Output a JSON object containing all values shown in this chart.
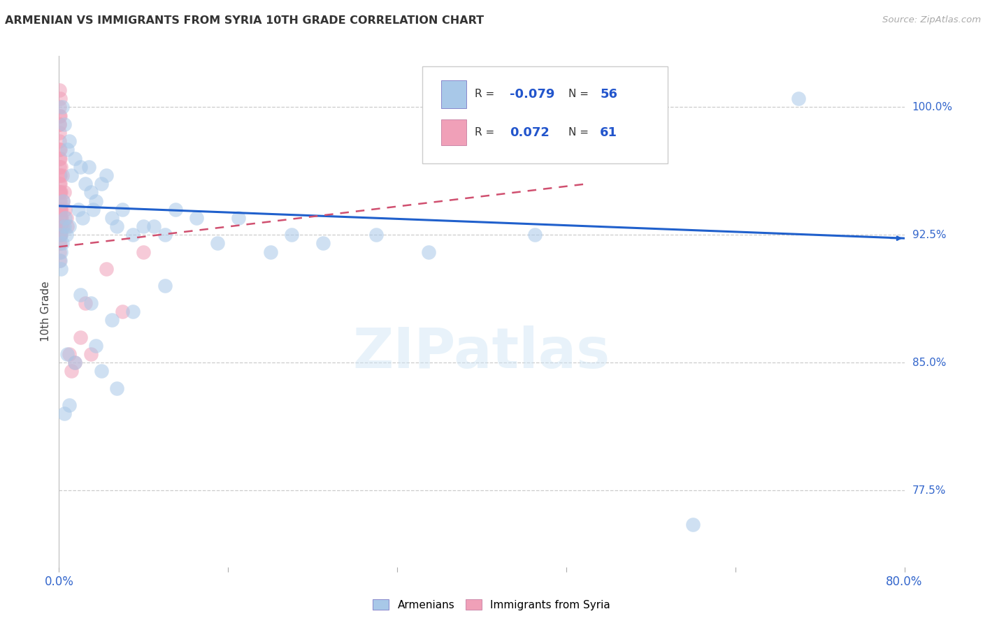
{
  "title": "ARMENIAN VS IMMIGRANTS FROM SYRIA 10TH GRADE CORRELATION CHART",
  "source": "Source: ZipAtlas.com",
  "ylabel": "10th Grade",
  "right_yticks": [
    100.0,
    92.5,
    85.0,
    77.5
  ],
  "right_ytick_labels": [
    "100.0%",
    "92.5%",
    "85.0%",
    "77.5%"
  ],
  "xlim": [
    0.0,
    80.0
  ],
  "ylim": [
    73.0,
    103.0
  ],
  "blue_color": "#a8c8e8",
  "pink_color": "#f0a0b8",
  "trend_blue": "#2060cc",
  "trend_pink": "#d05070",
  "watermark": "ZIPatlas",
  "blue_scatter": [
    [
      0.3,
      100.0
    ],
    [
      0.5,
      99.0
    ],
    [
      1.0,
      98.0
    ],
    [
      0.8,
      97.5
    ],
    [
      1.5,
      97.0
    ],
    [
      2.0,
      96.5
    ],
    [
      1.2,
      96.0
    ],
    [
      2.5,
      95.5
    ],
    [
      3.0,
      95.0
    ],
    [
      2.8,
      96.5
    ],
    [
      3.5,
      94.5
    ],
    [
      4.0,
      95.5
    ],
    [
      3.2,
      94.0
    ],
    [
      4.5,
      96.0
    ],
    [
      5.0,
      93.5
    ],
    [
      0.6,
      93.5
    ],
    [
      1.0,
      93.0
    ],
    [
      1.8,
      94.0
    ],
    [
      2.2,
      93.5
    ],
    [
      0.4,
      94.5
    ],
    [
      5.5,
      93.0
    ],
    [
      6.0,
      94.0
    ],
    [
      7.0,
      92.5
    ],
    [
      8.0,
      93.0
    ],
    [
      0.2,
      92.5
    ],
    [
      9.0,
      93.0
    ],
    [
      10.0,
      92.5
    ],
    [
      0.3,
      92.0
    ],
    [
      0.5,
      93.0
    ],
    [
      0.7,
      92.5
    ],
    [
      11.0,
      94.0
    ],
    [
      13.0,
      93.5
    ],
    [
      15.0,
      92.0
    ],
    [
      17.0,
      93.5
    ],
    [
      20.0,
      91.5
    ],
    [
      22.0,
      92.5
    ],
    [
      25.0,
      92.0
    ],
    [
      0.1,
      91.0
    ],
    [
      0.15,
      90.5
    ],
    [
      0.2,
      91.5
    ],
    [
      2.0,
      89.0
    ],
    [
      3.0,
      88.5
    ],
    [
      5.0,
      87.5
    ],
    [
      7.0,
      88.0
    ],
    [
      10.0,
      89.5
    ],
    [
      0.8,
      85.5
    ],
    [
      1.5,
      85.0
    ],
    [
      3.5,
      86.0
    ],
    [
      4.0,
      84.5
    ],
    [
      5.5,
      83.5
    ],
    [
      0.5,
      82.0
    ],
    [
      1.0,
      82.5
    ],
    [
      35.0,
      91.5
    ],
    [
      45.0,
      92.5
    ],
    [
      60.0,
      75.5
    ],
    [
      70.0,
      100.5
    ],
    [
      30.0,
      92.5
    ]
  ],
  "pink_scatter": [
    [
      0.02,
      101.0
    ],
    [
      0.03,
      100.0
    ],
    [
      0.02,
      99.5
    ],
    [
      0.04,
      99.0
    ],
    [
      0.03,
      98.5
    ],
    [
      0.05,
      98.0
    ],
    [
      0.02,
      97.5
    ],
    [
      0.04,
      97.0
    ],
    [
      0.03,
      96.5
    ],
    [
      0.05,
      96.0
    ],
    [
      0.06,
      95.5
    ],
    [
      0.02,
      95.0
    ],
    [
      0.04,
      94.5
    ],
    [
      0.03,
      94.0
    ],
    [
      0.06,
      93.5
    ],
    [
      0.05,
      93.0
    ],
    [
      0.04,
      92.5
    ],
    [
      0.06,
      92.0
    ],
    [
      0.05,
      91.5
    ],
    [
      0.03,
      91.0
    ],
    [
      0.08,
      100.5
    ],
    [
      0.07,
      99.0
    ],
    [
      0.09,
      97.5
    ],
    [
      0.08,
      96.0
    ],
    [
      0.07,
      95.0
    ],
    [
      0.09,
      94.0
    ],
    [
      0.08,
      93.5
    ],
    [
      0.1,
      93.0
    ],
    [
      0.09,
      92.5
    ],
    [
      0.08,
      92.0
    ],
    [
      0.12,
      99.5
    ],
    [
      0.11,
      97.0
    ],
    [
      0.13,
      95.5
    ],
    [
      0.12,
      94.5
    ],
    [
      0.11,
      93.0
    ],
    [
      0.15,
      96.5
    ],
    [
      0.14,
      95.0
    ],
    [
      0.16,
      94.0
    ],
    [
      0.15,
      93.5
    ],
    [
      0.14,
      92.5
    ],
    [
      0.2,
      95.0
    ],
    [
      0.18,
      94.0
    ],
    [
      0.22,
      93.5
    ],
    [
      0.25,
      93.0
    ],
    [
      0.2,
      92.5
    ],
    [
      0.3,
      96.0
    ],
    [
      0.35,
      94.5
    ],
    [
      0.4,
      93.0
    ],
    [
      0.5,
      95.0
    ],
    [
      0.6,
      94.0
    ],
    [
      0.7,
      93.5
    ],
    [
      0.8,
      93.0
    ],
    [
      1.0,
      85.5
    ],
    [
      1.5,
      85.0
    ],
    [
      2.0,
      86.5
    ],
    [
      1.2,
      84.5
    ],
    [
      2.5,
      88.5
    ],
    [
      3.0,
      85.5
    ],
    [
      4.5,
      90.5
    ],
    [
      6.0,
      88.0
    ],
    [
      8.0,
      91.5
    ]
  ],
  "blue_trend_x": [
    0,
    80
  ],
  "blue_trend_y": [
    94.2,
    92.3
  ],
  "pink_trend_x": [
    0,
    50
  ],
  "pink_trend_y": [
    91.8,
    95.5
  ]
}
